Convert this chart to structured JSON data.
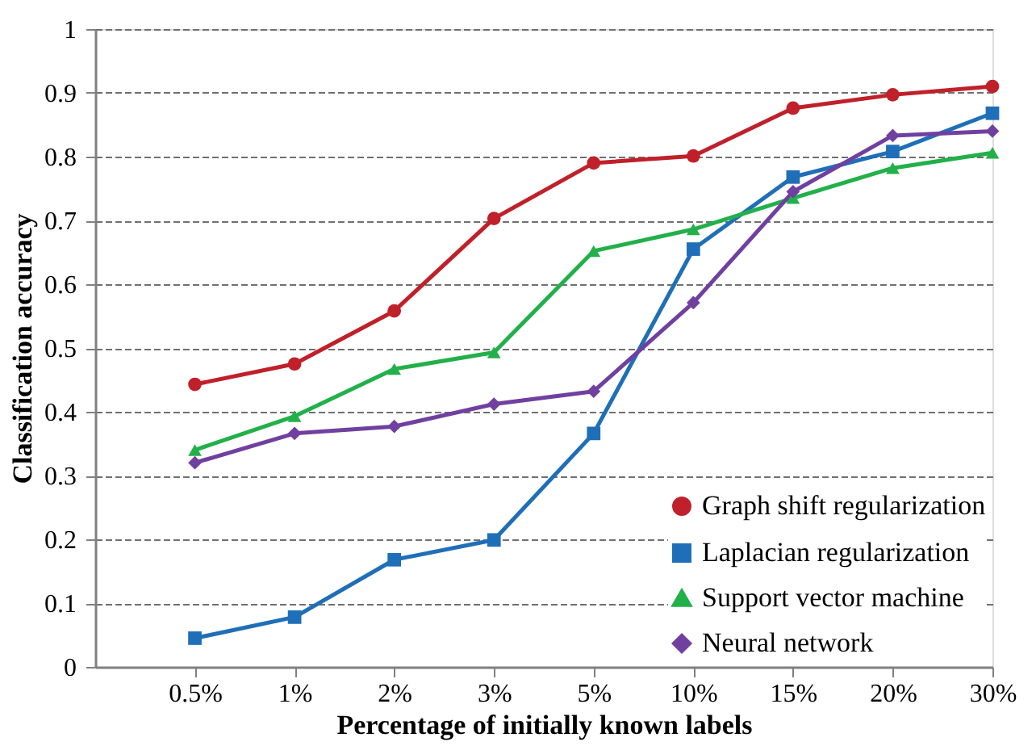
{
  "chart_data": {
    "type": "line",
    "xlabel": "Percentage of initially known labels",
    "ylabel": "Classification accuracy",
    "categories": [
      "0.5%",
      "1%",
      "2%",
      "3%",
      "5%",
      "10%",
      "15%",
      "20%",
      "30%"
    ],
    "ylim": [
      0,
      1
    ],
    "yticks": [
      0,
      0.1,
      0.2,
      0.3,
      0.4,
      0.5,
      0.6,
      0.7,
      0.8,
      0.9,
      1
    ],
    "grid": "y",
    "legend": "bottom right",
    "line_style": "solid",
    "series": [
      {
        "name": "Graph shift regularization",
        "color": "#c0202a",
        "marker": "circle",
        "values": [
          0.443,
          0.475,
          0.558,
          0.703,
          0.79,
          0.801,
          0.876,
          0.897,
          0.91
        ]
      },
      {
        "name": "Laplacian regularization",
        "color": "#1f6fb8",
        "marker": "square",
        "values": [
          0.045,
          0.078,
          0.168,
          0.199,
          0.366,
          0.655,
          0.768,
          0.808,
          0.868
        ]
      },
      {
        "name": "Support vector machine",
        "color": "#22b04a",
        "marker": "triangle",
        "values": [
          0.34,
          0.393,
          0.467,
          0.493,
          0.652,
          0.686,
          0.735,
          0.782,
          0.806
        ]
      },
      {
        "name": "Neural network",
        "color": "#7040a0",
        "marker": "diamond",
        "values": [
          0.32,
          0.366,
          0.377,
          0.412,
          0.432,
          0.571,
          0.745,
          0.833,
          0.84
        ]
      }
    ]
  }
}
